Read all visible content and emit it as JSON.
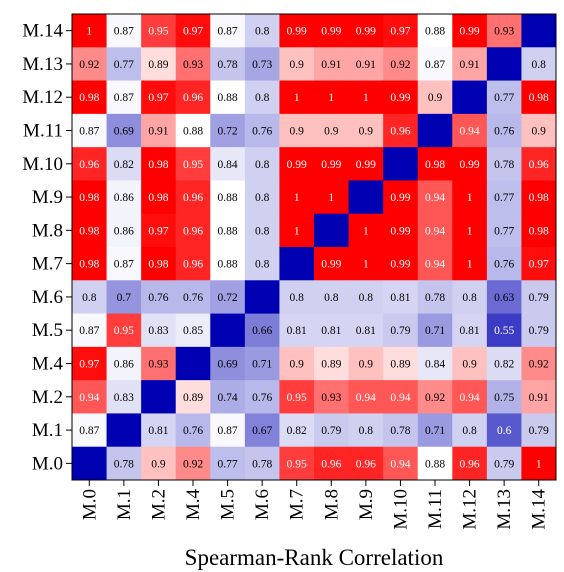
{
  "chart_data": {
    "type": "heatmap",
    "title": "",
    "xlabel": "Spearman-Rank Correlation",
    "ylabel": "",
    "rows": [
      "M.14",
      "M.13",
      "M.12",
      "M.11",
      "M.10",
      "M.9",
      "M.8",
      "M.7",
      "M.6",
      "M.5",
      "M.4",
      "M.2",
      "M.1",
      "M.0"
    ],
    "columns": [
      "M.0",
      "M.1",
      "M.2",
      "M.4",
      "M.5",
      "M.6",
      "M.7",
      "M.8",
      "M.9",
      "M.10",
      "M.11",
      "M.12",
      "M.13",
      "M.14"
    ],
    "values": [
      [
        "1",
        "0.87",
        "0.95",
        "0.97",
        "0.87",
        "0.8",
        "0.99",
        "0.99",
        "0.99",
        "0.97",
        "0.88",
        "0.99",
        "0.93",
        null
      ],
      [
        "0.92",
        "0.77",
        "0.89",
        "0.93",
        "0.78",
        "0.73",
        "0.9",
        "0.91",
        "0.91",
        "0.92",
        "0.87",
        "0.91",
        null,
        "0.8"
      ],
      [
        "0.98",
        "0.87",
        "0.97",
        "0.96",
        "0.88",
        "0.8",
        "1",
        "1",
        "1",
        "0.99",
        "0.9",
        null,
        "0.77",
        "0.98"
      ],
      [
        "0.87",
        "0.69",
        "0.91",
        "0.88",
        "0.72",
        "0.76",
        "0.9",
        "0.9",
        "0.9",
        "0.96",
        null,
        "0.94",
        "0.76",
        "0.9"
      ],
      [
        "0.96",
        "0.82",
        "0.98",
        "0.95",
        "0.84",
        "0.8",
        "0.99",
        "0.99",
        "0.99",
        null,
        "0.98",
        "0.99",
        "0.78",
        "0.96"
      ],
      [
        "0.98",
        "0.86",
        "0.98",
        "0.96",
        "0.88",
        "0.8",
        "1",
        "1",
        null,
        "0.99",
        "0.94",
        "1",
        "0.77",
        "0.98"
      ],
      [
        "0.98",
        "0.86",
        "0.97",
        "0.96",
        "0.88",
        "0.8",
        "1",
        null,
        "1",
        "0.99",
        "0.94",
        "1",
        "0.77",
        "0.98"
      ],
      [
        "0.98",
        "0.87",
        "0.98",
        "0.96",
        "0.88",
        "0.8",
        null,
        "0.99",
        "1",
        "0.99",
        "0.94",
        "1",
        "0.76",
        "0.97"
      ],
      [
        "0.8",
        "0.7",
        "0.76",
        "0.76",
        "0.72",
        null,
        "0.8",
        "0.8",
        "0.8",
        "0.81",
        "0.78",
        "0.8",
        "0.63",
        "0.79"
      ],
      [
        "0.87",
        "0.95",
        "0.83",
        "0.85",
        null,
        "0.66",
        "0.81",
        "0.81",
        "0.81",
        "0.79",
        "0.71",
        "0.81",
        "0.55",
        "0.79"
      ],
      [
        "0.97",
        "0.86",
        "0.93",
        null,
        "0.69",
        "0.71",
        "0.9",
        "0.89",
        "0.9",
        "0.89",
        "0.84",
        "0.9",
        "0.82",
        "0.92"
      ],
      [
        "0.94",
        "0.83",
        null,
        "0.89",
        "0.74",
        "0.76",
        "0.95",
        "0.93",
        "0.94",
        "0.94",
        "0.92",
        "0.94",
        "0.75",
        "0.91"
      ],
      [
        "0.87",
        null,
        "0.81",
        "0.76",
        "0.87",
        "0.67",
        "0.82",
        "0.79",
        "0.8",
        "0.78",
        "0.71",
        "0.8",
        "0.6",
        "0.79"
      ],
      [
        null,
        "0.78",
        "0.9",
        "0.92",
        "0.77",
        "0.78",
        "0.95",
        "0.96",
        "0.96",
        "0.94",
        "0.88",
        "0.96",
        "0.79",
        "1"
      ]
    ],
    "diagonal_color": "#0000b3",
    "colors": {
      "high": "#ff0000",
      "mid": "#ffffff",
      "low": "#0000b3"
    },
    "grid": false,
    "legend": "none"
  }
}
